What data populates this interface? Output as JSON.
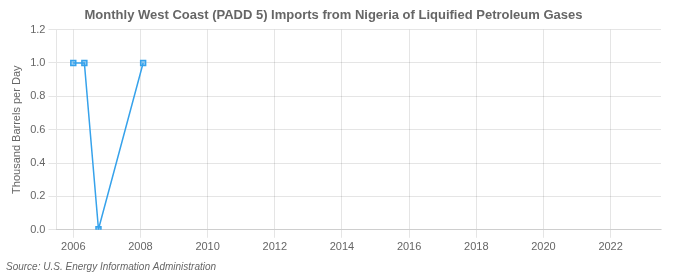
{
  "chart_data": {
    "type": "line",
    "title": "Monthly West Coast (PADD 5) Imports from Nigeria of Liquified Petroleum Gases",
    "ylabel": "Thousand Barrels per Day",
    "source": "Source: U.S. Energy Information Administration",
    "x": [
      2006.0,
      2006.33,
      2006.75,
      2008.08
    ],
    "values": [
      1.0,
      1.0,
      0.003,
      1.0
    ],
    "xlim": [
      2005.5,
      2023.5
    ],
    "xticks": [
      2006,
      2008,
      2010,
      2012,
      2014,
      2016,
      2018,
      2020,
      2022
    ],
    "ylim": [
      0.0,
      1.2
    ],
    "yticks": [
      {
        "value": 0.0,
        "label": "0.0"
      },
      0.2,
      0.4,
      0.6,
      0.8,
      {
        "value": 1.0,
        "label": "1.0"
      },
      1.2
    ],
    "marker": "square",
    "line_style": "solid",
    "grid": true
  }
}
